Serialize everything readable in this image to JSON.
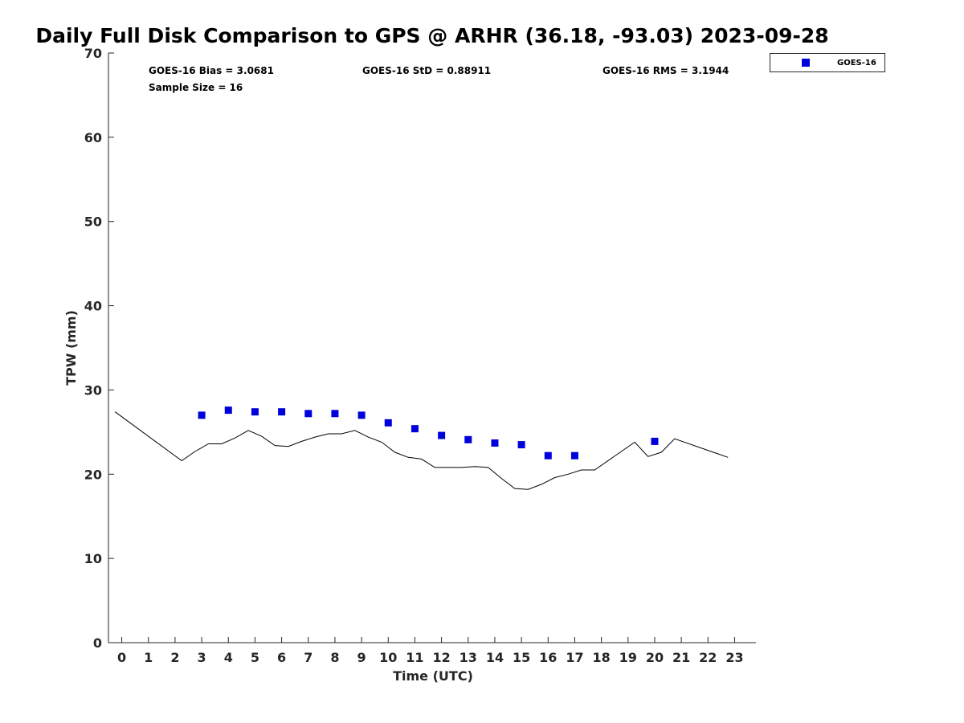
{
  "chart_data": {
    "type": "scatter",
    "title": "Daily Full Disk Comparison to GPS @ ARHR (36.18, -93.03) 2023-09-28",
    "xlabel": "Time (UTC)",
    "ylabel": "TPW (mm)",
    "xlim": [
      -0.5,
      23.8
    ],
    "ylim": [
      0,
      70
    ],
    "xticks": [
      0,
      1,
      2,
      3,
      4,
      5,
      6,
      7,
      8,
      9,
      10,
      11,
      12,
      13,
      14,
      15,
      16,
      17,
      18,
      19,
      20,
      21,
      22,
      23
    ],
    "yticks": [
      0,
      10,
      20,
      30,
      40,
      50,
      60,
      70
    ],
    "grid": false,
    "legend_position": "top-right, outside plot",
    "stats": {
      "bias": "GOES-16 Bias = 3.0681",
      "std": "GOES-16 StD = 0.88911",
      "rms": "GOES-16 RMS = 3.1944",
      "sample": "Sample Size = 16"
    },
    "series": [
      {
        "name": "GOES-16",
        "kind": "scatter",
        "marker": "square",
        "color": "#0000dd",
        "x": [
          3,
          4,
          5,
          6,
          7,
          8,
          9,
          10,
          11,
          12,
          13,
          14,
          15,
          16,
          17,
          20
        ],
        "y": [
          27.0,
          27.6,
          27.4,
          27.4,
          27.2,
          27.2,
          27.0,
          26.1,
          25.4,
          24.6,
          24.1,
          23.7,
          23.5,
          22.2,
          22.2,
          23.9
        ]
      },
      {
        "kind": "line",
        "color": "#000000",
        "x": [
          -0.25,
          2.25,
          2.75,
          3.25,
          3.75,
          4.25,
          4.75,
          5.25,
          5.75,
          6.25,
          6.75,
          7.25,
          7.75,
          8.25,
          8.75,
          9.25,
          9.75,
          10.25,
          10.75,
          11.25,
          11.75,
          12.25,
          12.75,
          13.25,
          13.75,
          14.25,
          14.75,
          15.25,
          15.75,
          16.25,
          16.75,
          17.25,
          17.75,
          19.25,
          19.75,
          20.25,
          20.75,
          22.75
        ],
        "y": [
          27.4,
          21.6,
          22.7,
          23.6,
          23.6,
          24.3,
          25.2,
          24.5,
          23.4,
          23.3,
          23.9,
          24.4,
          24.8,
          24.8,
          25.2,
          24.4,
          23.8,
          22.6,
          22.0,
          21.8,
          20.8,
          20.8,
          20.8,
          20.9,
          20.8,
          19.5,
          18.3,
          18.2,
          18.8,
          19.6,
          20.0,
          20.5,
          20.5,
          23.8,
          22.1,
          22.6,
          24.2,
          22.0
        ]
      }
    ]
  }
}
